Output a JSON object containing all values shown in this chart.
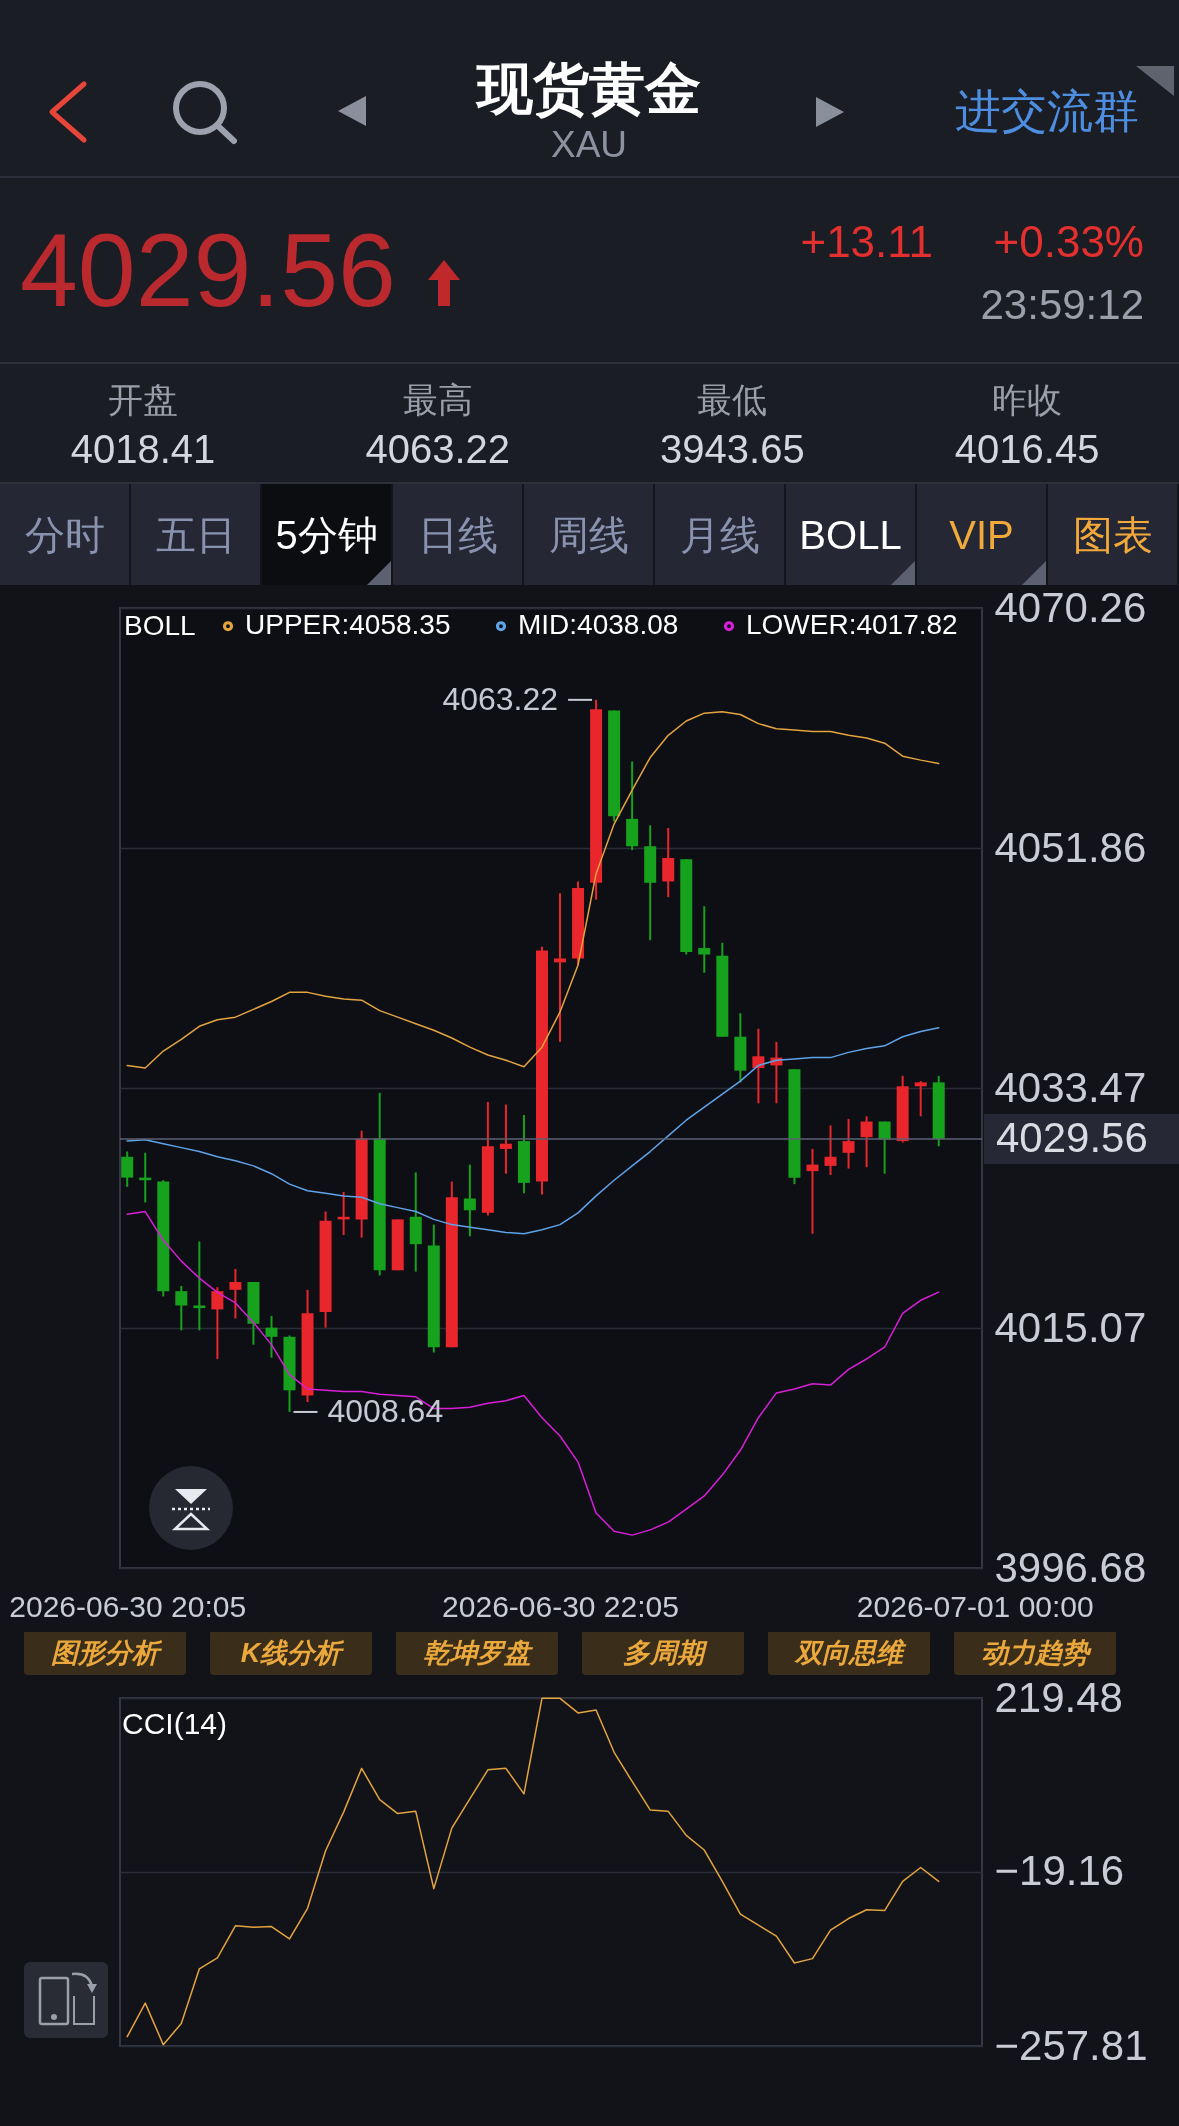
{
  "chart_data": [
    {
      "type": "other",
      "title": "现货黄金",
      "subtitle": "XAU",
      "annotations": [
        "进交流群",
        "4029.56",
        "+13.11",
        "+0.33%",
        "23:59:12",
        "开盘",
        "4018.41",
        "最高",
        "4063.22",
        "最低",
        "3943.65",
        "昨收",
        "4016.45",
        "分时",
        "五日",
        "5分钟",
        "日线",
        "周线",
        "月线",
        "BOLL",
        "VIP",
        "图表"
      ]
    },
    {
      "type": "candlestick",
      "x": [
        "2026-06-30T20:05",
        "2026-06-30T20:10",
        "2026-06-30T20:15",
        "2026-06-30T20:20",
        "2026-06-30T20:25",
        "2026-06-30T20:30",
        "2026-06-30T20:35",
        "2026-06-30T20:40",
        "2026-06-30T20:45",
        "2026-06-30T20:50",
        "2026-06-30T20:55",
        "2026-06-30T21:00",
        "2026-06-30T21:05",
        "2026-06-30T21:10",
        "2026-06-30T21:15",
        "2026-06-30T21:20",
        "2026-06-30T21:25",
        "2026-06-30T21:30",
        "2026-06-30T21:35",
        "2026-06-30T21:40",
        "2026-06-30T21:45",
        "2026-06-30T21:50",
        "2026-06-30T21:55",
        "2026-06-30T22:00",
        "2026-06-30T22:05",
        "2026-06-30T22:10",
        "2026-06-30T22:15",
        "2026-06-30T22:20",
        "2026-06-30T22:25",
        "2026-06-30T22:30",
        "2026-06-30T22:35",
        "2026-06-30T22:40",
        "2026-06-30T22:45",
        "2026-06-30T22:50",
        "2026-06-30T22:55",
        "2026-06-30T23:00",
        "2026-06-30T23:05",
        "2026-06-30T23:10",
        "2026-06-30T23:15",
        "2026-06-30T23:20",
        "2026-06-30T23:25",
        "2026-06-30T23:30",
        "2026-06-30T23:35",
        "2026-06-30T23:40",
        "2026-06-30T23:45",
        "2026-06-30T23:50"
      ],
      "ohlc": [
        [
          4028.2,
          4028.6,
          4025.9,
          4026.6
        ],
        [
          4026.6,
          4028.5,
          4024.7,
          4026.4
        ],
        [
          4026.3,
          4026.4,
          4017.5,
          4017.9
        ],
        [
          4017.9,
          4018.3,
          4014.9,
          4016.8
        ],
        [
          4016.8,
          4021.7,
          4014.9,
          4016.6
        ],
        [
          4016.5,
          4018.2,
          4012.7,
          4017.9
        ],
        [
          4018.0,
          4019.6,
          4015.8,
          4018.6
        ],
        [
          4018.6,
          4018.6,
          4013.8,
          4015.4
        ],
        [
          4015.1,
          4016.0,
          4012.8,
          4014.4
        ],
        [
          4014.4,
          4014.5,
          4008.64,
          4010.3
        ],
        [
          4009.9,
          4018.0,
          4009.4,
          4016.2
        ],
        [
          4016.3,
          4024.0,
          4015.1,
          4023.3
        ],
        [
          4023.4,
          4025.5,
          4022.2,
          4023.6
        ],
        [
          4023.4,
          4030.2,
          4022.0,
          4029.6
        ],
        [
          4029.6,
          4033.1,
          4019.1,
          4019.5
        ],
        [
          4019.5,
          4023.4,
          4019.5,
          4023.4
        ],
        [
          4023.6,
          4027.0,
          4019.4,
          4021.5
        ],
        [
          4021.4,
          4023.0,
          4013.2,
          4013.6
        ],
        [
          4013.6,
          4026.3,
          4013.6,
          4025.1
        ],
        [
          4025.0,
          4027.6,
          4022.1,
          4024.1
        ],
        [
          4023.9,
          4032.4,
          4023.7,
          4029.0
        ],
        [
          4028.8,
          4032.2,
          4026.9,
          4029.2
        ],
        [
          4029.4,
          4031.4,
          4025.4,
          4026.2
        ],
        [
          4026.3,
          4044.3,
          4025.3,
          4044.0
        ],
        [
          4043.1,
          4048.4,
          4037.0,
          4043.4
        ],
        [
          4043.4,
          4049.3,
          4042.9,
          4048.8
        ],
        [
          4049.2,
          4063.22,
          4047.9,
          4062.5
        ],
        [
          4062.4,
          4062.4,
          4053.9,
          4054.3
        ],
        [
          4054.1,
          4058.5,
          4051.7,
          4052.0
        ],
        [
          4052.0,
          4053.6,
          4044.8,
          4049.2
        ],
        [
          4049.3,
          4053.4,
          4048.1,
          4051.1
        ],
        [
          4051.0,
          4051.0,
          4043.7,
          4043.9
        ],
        [
          4044.2,
          4047.4,
          4042.3,
          4043.7
        ],
        [
          4043.6,
          4044.6,
          4037.4,
          4037.4
        ],
        [
          4037.4,
          4039.2,
          4033.9,
          4034.8
        ],
        [
          4035.0,
          4038.0,
          4032.3,
          4035.9
        ],
        [
          4035.2,
          4037.0,
          4032.3,
          4035.8
        ],
        [
          4034.9,
          4034.9,
          4026.1,
          4026.6
        ],
        [
          4027.1,
          4028.8,
          4022.3,
          4027.6
        ],
        [
          4027.5,
          4030.6,
          4026.8,
          4028.2
        ],
        [
          4028.5,
          4031.1,
          4027.3,
          4029.4
        ],
        [
          4029.7,
          4031.3,
          4027.4,
          4030.9
        ],
        [
          4030.9,
          4030.9,
          4026.9,
          4029.5
        ],
        [
          4029.4,
          4034.4,
          4029.3,
          4033.6
        ],
        [
          4033.6,
          4034.0,
          4031.3,
          4033.9
        ],
        [
          4033.9,
          4034.4,
          4029.0,
          4029.56
        ]
      ],
      "colors": [
        "#17a21e",
        "#17a21e",
        "#17a21e",
        "#17a21e",
        "#17a21e",
        "#e8262c",
        "#e8262c",
        "#17a21e",
        "#17a21e",
        "#17a21e",
        "#e8262c",
        "#e8262c",
        "#e8262c",
        "#e8262c",
        "#17a21e",
        "#e8262c",
        "#17a21e",
        "#17a21e",
        "#e8262c",
        "#17a21e",
        "#e8262c",
        "#e8262c",
        "#17a21e",
        "#e8262c",
        "#e8262c",
        "#e8262c",
        "#e8262c",
        "#17a21e",
        "#17a21e",
        "#17a21e",
        "#e8262c",
        "#17a21e",
        "#17a21e",
        "#17a21e",
        "#17a21e",
        "#e8262c",
        "#e8262c",
        "#17a21e",
        "#e8262c",
        "#e8262c",
        "#e8262c",
        "#e8262c",
        "#17a21e",
        "#e8262c",
        "#e8262c",
        "#17a21e"
      ],
      "series": [
        {
          "name": "UPPER:4058.35",
          "type": "line",
          "color": "#e3a33f",
          "values": [
            4035.2,
            4035.0,
            4036.3,
            4037.2,
            4038.2,
            4038.7,
            4038.9,
            4039.5,
            4040.1,
            4040.8,
            4040.8,
            4040.5,
            4040.3,
            4040.2,
            4039.4,
            4038.9,
            4038.4,
            4037.9,
            4037.3,
            4036.6,
            4036.0,
            4035.6,
            4035.1,
            4036.6,
            4039.3,
            4042.9,
            4049.9,
            4053.7,
            4056.3,
            4058.8,
            4060.5,
            4061.6,
            4062.2,
            4062.3,
            4062.1,
            4061.4,
            4061.0,
            4060.9,
            4060.8,
            4060.8,
            4060.5,
            4060.3,
            4059.9,
            4058.9,
            4058.6,
            4058.35
          ]
        },
        {
          "name": "MID:4038.08",
          "type": "line",
          "color": "#5ea3e8",
          "values": [
            4029.4,
            4029.5,
            4029.2,
            4028.9,
            4028.6,
            4028.2,
            4027.9,
            4027.5,
            4026.9,
            4026.1,
            4025.6,
            4025.4,
            4025.2,
            4025.1,
            4024.6,
            4024.3,
            4024.0,
            4023.4,
            4023.0,
            4022.8,
            4022.6,
            4022.4,
            4022.3,
            4022.6,
            4023.0,
            4023.9,
            4025.2,
            4026.4,
            4027.5,
            4028.6,
            4029.8,
            4031.0,
            4032.0,
            4033.0,
            4034.0,
            4035.2,
            4035.6,
            4035.7,
            4035.8,
            4035.8,
            4036.2,
            4036.5,
            4036.7,
            4037.4,
            4037.8,
            4038.08
          ]
        },
        {
          "name": "LOWER:4017.82",
          "type": "line",
          "color": "#d81ed8",
          "values": [
            4023.8,
            4024.0,
            4021.8,
            4020.2,
            4018.9,
            4017.8,
            4017.0,
            4015.5,
            4013.8,
            4011.5,
            4010.4,
            4010.3,
            4010.2,
            4010.2,
            4010.0,
            4009.9,
            4009.8,
            4008.9,
            4008.9,
            4009.0,
            4009.3,
            4009.5,
            4009.9,
            4008.2,
            4006.8,
            4004.8,
            4000.9,
            3999.5,
            3999.2,
            3999.6,
            4000.2,
            4001.2,
            4002.2,
            4003.8,
            4005.7,
            4008.2,
            4010.1,
            4010.4,
            4010.8,
            4010.7,
            4011.9,
            4012.7,
            4013.6,
            4016.2,
            4017.2,
            4017.82
          ]
        }
      ],
      "legend": "top left",
      "legend_title": "BOLL",
      "xlim": [
        "2026-06-30T20:03",
        "2026-07-01T00:02"
      ],
      "xticks": [
        {
          "value": "2026-06-30T20:05",
          "label": "2026-06-30 20:05"
        },
        {
          "value": "2026-06-30T22:05",
          "label": "2026-06-30 22:05"
        },
        {
          "value": "2026-07-01T00:00",
          "label": "2026-07-01 00:00"
        }
      ],
      "ylim": [
        3996.68,
        4070.26
      ],
      "yticks": [
        3996.68,
        4015.07,
        4033.47,
        4051.86,
        4070.26
      ],
      "grid": "y",
      "ref_lines": [
        {
          "axis": "y",
          "value": 4029.56,
          "label": "4029.56",
          "color": "#5c6070"
        }
      ],
      "annotations": [
        {
          "text": "4063.22",
          "x": "2026-06-30T22:15",
          "y": 4063.22
        },
        {
          "text": "4008.64",
          "x": "2026-06-30T20:50",
          "y": 4008.64
        }
      ]
    },
    {
      "type": "other",
      "annotations": [
        "图形分析",
        "K线分析",
        "乾坤罗盘",
        "多周期",
        "双向思维",
        "动力趋势"
      ]
    },
    {
      "type": "line",
      "title": "CCI(14)",
      "x": [
        "2026-06-30T20:05",
        "2026-06-30T20:10",
        "2026-06-30T20:15",
        "2026-06-30T20:20",
        "2026-06-30T20:25",
        "2026-06-30T20:30",
        "2026-06-30T20:35",
        "2026-06-30T20:40",
        "2026-06-30T20:45",
        "2026-06-30T20:50",
        "2026-06-30T20:55",
        "2026-06-30T21:00",
        "2026-06-30T21:05",
        "2026-06-30T21:10",
        "2026-06-30T21:15",
        "2026-06-30T21:20",
        "2026-06-30T21:25",
        "2026-06-30T21:30",
        "2026-06-30T21:35",
        "2026-06-30T21:40",
        "2026-06-30T21:45",
        "2026-06-30T21:50",
        "2026-06-30T21:55",
        "2026-06-30T22:00",
        "2026-06-30T22:05",
        "2026-06-30T22:10",
        "2026-06-30T22:15",
        "2026-06-30T22:20",
        "2026-06-30T22:25",
        "2026-06-30T22:30",
        "2026-06-30T22:35",
        "2026-06-30T22:40",
        "2026-06-30T22:45",
        "2026-06-30T22:50",
        "2026-06-30T22:55",
        "2026-06-30T23:00",
        "2026-06-30T23:05",
        "2026-06-30T23:10",
        "2026-06-30T23:15",
        "2026-06-30T23:20",
        "2026-06-30T23:25",
        "2026-06-30T23:30",
        "2026-06-30T23:35",
        "2026-06-30T23:40",
        "2026-06-30T23:45",
        "2026-06-30T23:50"
      ],
      "values": [
        -245,
        -199,
        -256,
        -227,
        -152,
        -137,
        -93,
        -95,
        -94,
        -111,
        -69,
        10,
        63,
        123,
        80,
        61,
        64,
        -42,
        41,
        81,
        121,
        123,
        88,
        219,
        219,
        199,
        203,
        145,
        105,
        66,
        64,
        31,
        11,
        -32,
        -77,
        -92,
        -107,
        -144,
        -138,
        -99,
        -83,
        -71,
        -72,
        -32,
        -13,
        -32
      ],
      "color": "#e3a33f",
      "xlim": [
        "2026-06-30T20:03",
        "2026-07-01T00:02"
      ],
      "ylim": [
        -257.81,
        219.48
      ],
      "yticks": [
        219.48,
        {
          "value": -19.16,
          "label": "−19.16"
        },
        {
          "value": -257.81,
          "label": "−257.81"
        }
      ],
      "grid": "y",
      "tick_labels": "y"
    }
  ]
}
